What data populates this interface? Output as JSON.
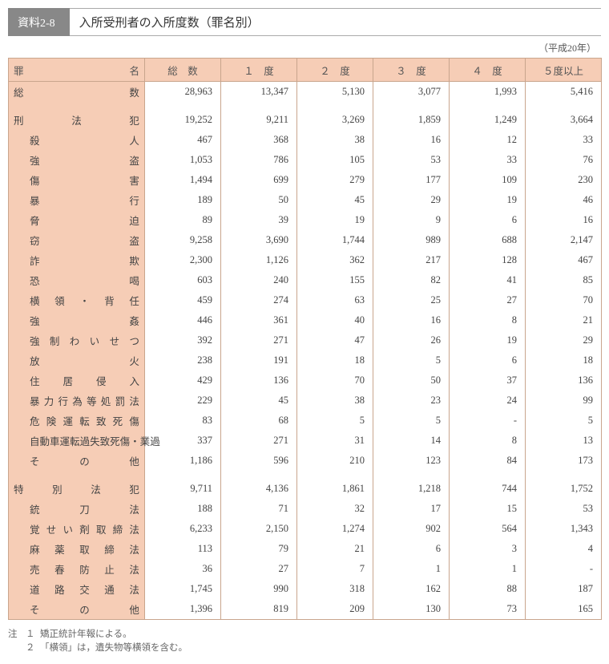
{
  "header": {
    "tag": "資料2-8",
    "title": "入所受刑者の入所度数（罪名別）",
    "year": "（平成20年）"
  },
  "columns": [
    "罪　　　　　名",
    "総　数",
    "１　度",
    "２　度",
    "３　度",
    "４　度",
    "５度以上"
  ],
  "rows": [
    {
      "type": "total",
      "label": "総　　　　　　　　　　数",
      "vals": [
        "28,963",
        "13,347",
        "5,130",
        "3,077",
        "1,993",
        "5,416"
      ]
    },
    {
      "type": "spacer"
    },
    {
      "type": "group",
      "label": "刑　　　法　　　犯",
      "vals": [
        "19,252",
        "9,211",
        "3,269",
        "1,859",
        "1,249",
        "3,664"
      ]
    },
    {
      "type": "item",
      "label": "殺　　　　　　　人",
      "vals": [
        "467",
        "368",
        "38",
        "16",
        "12",
        "33"
      ]
    },
    {
      "type": "item",
      "label": "強　　　　　　　盗",
      "vals": [
        "1,053",
        "786",
        "105",
        "53",
        "33",
        "76"
      ]
    },
    {
      "type": "item",
      "label": "傷　　　　　　　害",
      "vals": [
        "1,494",
        "699",
        "279",
        "177",
        "109",
        "230"
      ]
    },
    {
      "type": "item",
      "label": "暴　　　　　　　行",
      "vals": [
        "189",
        "50",
        "45",
        "29",
        "19",
        "46"
      ]
    },
    {
      "type": "item",
      "label": "脅　　　　　　　迫",
      "vals": [
        "89",
        "39",
        "19",
        "9",
        "6",
        "16"
      ]
    },
    {
      "type": "item",
      "label": "窃　　　　　　　盗",
      "vals": [
        "9,258",
        "3,690",
        "1,744",
        "989",
        "688",
        "2,147"
      ]
    },
    {
      "type": "item",
      "label": "詐　　　　　　　欺",
      "vals": [
        "2,300",
        "1,126",
        "362",
        "217",
        "128",
        "467"
      ]
    },
    {
      "type": "item",
      "label": "恐　　　　　　　喝",
      "vals": [
        "603",
        "240",
        "155",
        "82",
        "41",
        "85"
      ]
    },
    {
      "type": "item",
      "label": "横　領　・　背　任",
      "vals": [
        "459",
        "274",
        "63",
        "25",
        "27",
        "70"
      ]
    },
    {
      "type": "item",
      "label": "強　　　　　　　姦",
      "vals": [
        "446",
        "361",
        "40",
        "16",
        "8",
        "21"
      ]
    },
    {
      "type": "item",
      "label": "強 制 わ い せ つ",
      "vals": [
        "392",
        "271",
        "47",
        "26",
        "19",
        "29"
      ]
    },
    {
      "type": "item",
      "label": "放　　　　　　　火",
      "vals": [
        "238",
        "191",
        "18",
        "5",
        "6",
        "18"
      ]
    },
    {
      "type": "item",
      "label": "住　　居　　侵　　入",
      "vals": [
        "429",
        "136",
        "70",
        "50",
        "37",
        "136"
      ]
    },
    {
      "type": "item",
      "label": "暴 力 行 為 等 処 罰 法",
      "vals": [
        "229",
        "45",
        "38",
        "23",
        "24",
        "99"
      ]
    },
    {
      "type": "item",
      "label": "危 険 運 転 致 死 傷",
      "vals": [
        "83",
        "68",
        "5",
        "5",
        "-",
        "5"
      ]
    },
    {
      "type": "item",
      "label": "自動車運転過失致死傷・業過",
      "vals": [
        "337",
        "271",
        "31",
        "14",
        "8",
        "13"
      ]
    },
    {
      "type": "item",
      "label": "そ　　　の　　　他",
      "vals": [
        "1,186",
        "596",
        "210",
        "123",
        "84",
        "173"
      ]
    },
    {
      "type": "spacer"
    },
    {
      "type": "group",
      "label": "特　　別　　法　　犯",
      "vals": [
        "9,711",
        "4,136",
        "1,861",
        "1,218",
        "744",
        "1,752"
      ]
    },
    {
      "type": "item",
      "label": "銃　　　刀　　　法",
      "vals": [
        "188",
        "71",
        "32",
        "17",
        "15",
        "53"
      ]
    },
    {
      "type": "item",
      "label": "覚 せ い 剤 取 締 法",
      "vals": [
        "6,233",
        "2,150",
        "1,274",
        "902",
        "564",
        "1,343"
      ]
    },
    {
      "type": "item",
      "label": "麻　薬　取　締　法",
      "vals": [
        "113",
        "79",
        "21",
        "6",
        "3",
        "4"
      ]
    },
    {
      "type": "item",
      "label": "売　春　防　止　法",
      "vals": [
        "36",
        "27",
        "7",
        "1",
        "1",
        "-"
      ]
    },
    {
      "type": "item",
      "label": "道　路　交　通　法",
      "vals": [
        "1,745",
        "990",
        "318",
        "162",
        "88",
        "187"
      ]
    },
    {
      "type": "item",
      "label": "そ　　　の　　　他",
      "vals": [
        "1,396",
        "819",
        "209",
        "130",
        "73",
        "165"
      ]
    }
  ],
  "footnotes": {
    "tag": "注",
    "items": [
      {
        "idx": "１",
        "text": "矯正統計年報による。"
      },
      {
        "idx": "２",
        "text": "「横領」は，遺失物等横領を含む。"
      }
    ]
  }
}
